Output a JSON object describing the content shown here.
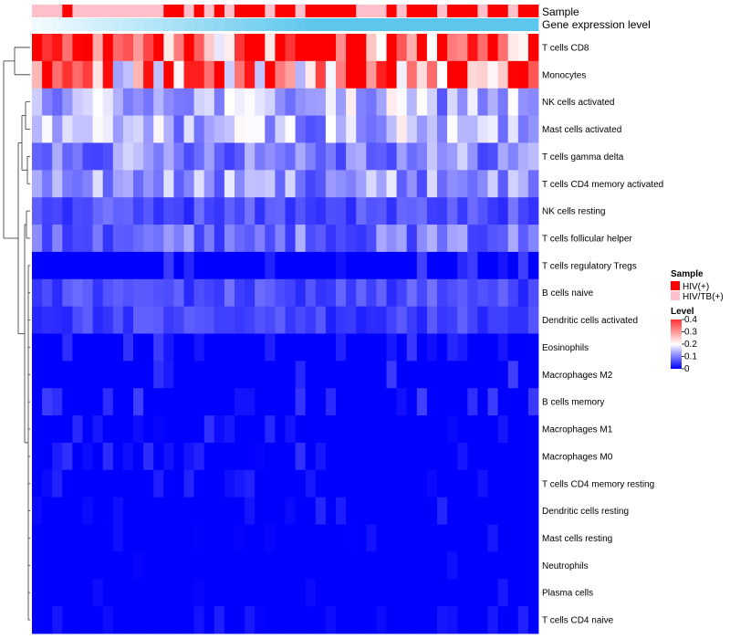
{
  "chart_data": {
    "type": "heatmap",
    "annotations": [
      "Sample",
      "Gene expression level"
    ],
    "row_labels": [
      "T cells CD8",
      "Monocytes",
      "NK cells activated",
      "Mast cells activated",
      "T cells gamma delta",
      "T cells CD4 memory activated",
      "NK cells resting",
      "T cells follicular helper",
      "T cells regulatory  Tregs",
      "B cells naive",
      "Dendritic cells activated",
      "Eosinophils",
      "Macrophages M2",
      "B cells memory",
      "Macrophages M1",
      "Macrophages M0",
      "T cells CD4 memory resting",
      "Dendritic cells resting",
      "Mast cells resting",
      "Neutrophils",
      "Plasma cells",
      "T cells CD4 naive"
    ],
    "n_columns": 50,
    "sample_groups": [
      "HIV/TB(+)",
      "HIV/TB(+)",
      "HIV/TB(+)",
      "HIV(+)",
      "HIV/TB(+)",
      "HIV/TB(+)",
      "HIV/TB(+)",
      "HIV/TB(+)",
      "HIV/TB(+)",
      "HIV/TB(+)",
      "HIV/TB(+)",
      "HIV/TB(+)",
      "HIV/TB(+)",
      "HIV(+)",
      "HIV(+)",
      "HIV/TB(+)",
      "HIV(+)",
      "HIV/TB(+)",
      "HIV(+)",
      "HIV/TB(+)",
      "HIV(+)",
      "HIV(+)",
      "HIV(+)",
      "HIV/TB(+)",
      "HIV(+)",
      "HIV(+)",
      "HIV/TB(+)",
      "HIV(+)",
      "HIV(+)",
      "HIV(+)",
      "HIV(+)",
      "HIV(+)",
      "HIV/TB(+)",
      "HIV/TB(+)",
      "HIV/TB(+)",
      "HIV(+)",
      "HIV/TB(+)",
      "HIV(+)",
      "HIV(+)",
      "HIV(+)",
      "HIV/TB(+)",
      "HIV(+)",
      "HIV(+)",
      "HIV(+)",
      "HIV/TB(+)",
      "HIV(+)",
      "HIV(+)",
      "HIV/TB(+)",
      "HIV(+)",
      "HIV(+)"
    ],
    "row_means": [
      0.36,
      0.28,
      0.14,
      0.14,
      0.11,
      0.12,
      0.06,
      0.09,
      0.03,
      0.06,
      0.05,
      0.03,
      0.03,
      0.03,
      0.02,
      0.02,
      0.01,
      0.01,
      0.0,
      0.0,
      0.01,
      0.01
    ],
    "value_range": [
      0,
      0.4
    ],
    "legend": {
      "sample_title": "Sample",
      "sample_items": [
        {
          "label": "HIV(+)",
          "color": "#ff0000"
        },
        {
          "label": "HIV/TB(+)",
          "color": "#ffc0cb"
        }
      ],
      "level_title": "Level",
      "level_ticks": [
        "0.4",
        "0.3",
        "0.2",
        "0.1",
        "0"
      ],
      "level_values": [
        0.4,
        0.3,
        0.2,
        0.1,
        0
      ],
      "position": "right"
    },
    "colors": {
      "low": "#0000ff",
      "mid": "#ffffff",
      "high": "#ff0000",
      "gene_low": "#f2fbff",
      "gene_high": "#5cc6ec"
    }
  }
}
